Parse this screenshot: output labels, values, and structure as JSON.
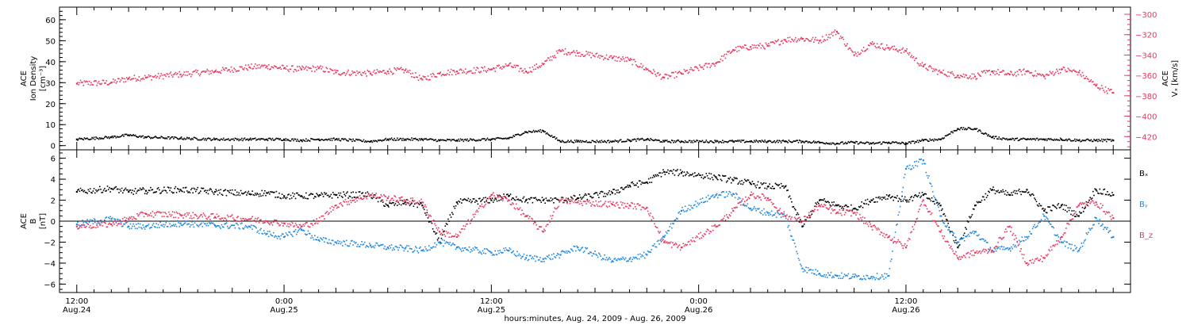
{
  "colors": {
    "black": "#000000",
    "pink": "#e8385f",
    "blue": "#1f88e0"
  },
  "chart_data": [
    {
      "type": "scatter",
      "panel": "density-velocity",
      "ylabel_left": [
        "ACE",
        "Ion Density",
        "[cm⁻³]"
      ],
      "ylabel_right": [
        "ACE",
        "Vₓ [km/s]"
      ],
      "ylim_left": [
        -2,
        66
      ],
      "yticks_left": [
        0,
        10,
        20,
        30,
        40,
        50,
        60
      ],
      "ylim_right": [
        -433,
        -293
      ],
      "yticks_right": [
        -300,
        -320,
        -340,
        -360,
        -380,
        -400,
        -420
      ],
      "xlim_hours": [
        -1,
        61
      ],
      "series": [
        {
          "color": "pink",
          "axis": "right",
          "noise": 3,
          "x": [
            0,
            2,
            3,
            4,
            6,
            8,
            10,
            11,
            12,
            13,
            14,
            15,
            17,
            18,
            19,
            20,
            21,
            22,
            24,
            25,
            26,
            27,
            28,
            29,
            31,
            32,
            33,
            34,
            35,
            37,
            38,
            39,
            40,
            41,
            42,
            43,
            44,
            45,
            46,
            47,
            48,
            49,
            50,
            51,
            52,
            53,
            54,
            55,
            56,
            57,
            58,
            59,
            60
          ],
          "y": [
            -368,
            -367,
            -363,
            -362,
            -359,
            -356,
            -352,
            -351,
            -353,
            -354,
            -353,
            -357,
            -358,
            -356,
            -355,
            -364,
            -358,
            -356,
            -354,
            -350,
            -356,
            -349,
            -336,
            -338,
            -343,
            -345,
            -354,
            -362,
            -358,
            -348,
            -335,
            -332,
            -331,
            -325,
            -324,
            -326,
            -317,
            -340,
            -329,
            -333,
            -336,
            -351,
            -357,
            -360,
            -361,
            -356,
            -359,
            -356,
            -361,
            -354,
            -357,
            -370,
            -377
          ]
        }
      ]
    },
    {
      "type": "scatter",
      "panel": "density-velocity",
      "series": [
        {
          "color": "black",
          "axis": "left",
          "noise": 0.6,
          "x": [
            0,
            2,
            3,
            4,
            6,
            8,
            10,
            11,
            12,
            13,
            14,
            15,
            17,
            18,
            19,
            20,
            21,
            22,
            24,
            25,
            26,
            27,
            28,
            29,
            31,
            32,
            33,
            34,
            35,
            37,
            38,
            39,
            40,
            41,
            42,
            43,
            44,
            45,
            46,
            47,
            48,
            49,
            50,
            51,
            52,
            53,
            54,
            55,
            56,
            57,
            58,
            59,
            60
          ],
          "y": [
            3,
            4,
            5,
            4,
            3.5,
            3,
            3,
            3,
            3,
            2.5,
            3,
            3,
            2,
            3,
            3,
            3,
            2.5,
            2.5,
            3,
            3.5,
            6.5,
            7,
            2,
            2,
            2,
            2.5,
            3,
            2,
            2,
            2,
            2,
            2,
            2,
            2,
            2,
            1.5,
            1,
            1.5,
            1,
            1.5,
            1,
            2.5,
            3,
            8,
            8,
            4,
            3,
            3,
            3,
            3,
            2.5,
            2.5,
            2.5
          ]
        }
      ]
    },
    {
      "type": "scatter",
      "panel": "magnetic-field",
      "ylabel": [
        "ACE",
        "B",
        "[nT]"
      ],
      "ylim": [
        -6.8,
        6.8
      ],
      "yticks": [
        -6,
        -4,
        -2,
        0,
        2,
        4,
        6
      ],
      "xlim_hours": [
        -1,
        61
      ],
      "series": [
        {
          "name": "Bₓ",
          "color": "black",
          "noise": 0.3,
          "x": [
            0,
            2,
            3,
            4,
            6,
            8,
            10,
            11,
            12,
            13,
            14,
            15,
            17,
            18,
            19,
            20,
            21,
            22,
            24,
            25,
            26,
            27,
            28,
            29,
            31,
            32,
            33,
            34,
            35,
            37,
            38,
            39,
            40,
            41,
            42,
            43,
            44,
            45,
            46,
            47,
            48,
            49,
            50,
            51,
            52,
            53,
            54,
            55,
            56,
            57,
            58,
            59,
            60
          ],
          "y": [
            2.8,
            3.1,
            2.8,
            2.9,
            3.0,
            2.8,
            2.6,
            2.7,
            2.4,
            2.4,
            2.4,
            2.5,
            2.5,
            1.5,
            1.8,
            1.5,
            -2.0,
            1.8,
            2.0,
            2.4,
            2.0,
            2.0,
            2.0,
            2.2,
            2.7,
            3.4,
            3.7,
            4.7,
            4.6,
            4.2,
            3.9,
            3.6,
            3.3,
            3.3,
            -0.5,
            2.0,
            1.5,
            1.2,
            2.0,
            2.4,
            2.0,
            2.5,
            1.5,
            -2.5,
            1.5,
            3.0,
            2.5,
            3.0,
            1.0,
            1.5,
            0.5,
            3.0,
            2.5
          ]
        },
        {
          "name": "Bᵧ",
          "color": "blue",
          "noise": 0.3,
          "x": [
            0,
            2,
            3,
            4,
            6,
            8,
            10,
            11,
            12,
            13,
            14,
            15,
            17,
            18,
            19,
            20,
            21,
            22,
            24,
            25,
            26,
            27,
            28,
            29,
            31,
            32,
            33,
            34,
            35,
            37,
            38,
            39,
            40,
            41,
            42,
            43,
            44,
            45,
            46,
            47,
            48,
            49,
            50,
            51,
            52,
            53,
            54,
            55,
            56,
            57,
            58,
            59,
            60
          ],
          "y": [
            -0.3,
            0.2,
            -0.5,
            -0.5,
            -0.2,
            -0.4,
            -0.5,
            -1.2,
            -1.5,
            -0.8,
            -1.8,
            -2.0,
            -2.3,
            -2.5,
            -2.6,
            -2.8,
            -2.0,
            -2.5,
            -3.0,
            -2.8,
            -3.5,
            -3.6,
            -3.2,
            -2.5,
            -3.8,
            -3.6,
            -3.2,
            -1.5,
            1.0,
            2.5,
            2.6,
            1.2,
            0.8,
            0.5,
            -4.5,
            -5.0,
            -5.2,
            -5.3,
            -5.3,
            -5.2,
            5.0,
            5.8,
            0.5,
            -2.0,
            -1.0,
            -2.8,
            -2.6,
            -1.5,
            0.5,
            -2.0,
            -2.8,
            0.3,
            -1.5
          ]
        },
        {
          "name": "B_z",
          "color": "pink",
          "noise": 0.3,
          "x": [
            0,
            2,
            3,
            4,
            6,
            8,
            10,
            11,
            12,
            13,
            14,
            15,
            17,
            18,
            19,
            20,
            21,
            22,
            24,
            25,
            26,
            27,
            28,
            29,
            31,
            32,
            33,
            34,
            35,
            37,
            38,
            39,
            40,
            41,
            42,
            43,
            44,
            45,
            46,
            47,
            48,
            49,
            50,
            51,
            52,
            53,
            54,
            55,
            56,
            57,
            58,
            59,
            60
          ],
          "y": [
            -0.5,
            -0.3,
            0.2,
            0.7,
            0.6,
            0.4,
            0.2,
            0.0,
            -0.2,
            -0.5,
            0.0,
            1.5,
            2.5,
            2.2,
            2.0,
            1.8,
            -1.0,
            -1.5,
            2.5,
            2.0,
            0.5,
            -1.0,
            2.0,
            1.8,
            1.6,
            1.5,
            1.3,
            -2.0,
            -2.5,
            -0.5,
            1.0,
            2.5,
            2.2,
            0.5,
            0.0,
            1.5,
            0.8,
            0.8,
            -0.5,
            -1.5,
            -2.5,
            2.0,
            -1.0,
            -3.5,
            -3.0,
            -2.8,
            -0.5,
            -4.0,
            -3.5,
            -1.5,
            1.5,
            1.8,
            0.3
          ]
        }
      ]
    }
  ],
  "axis": {
    "x_ticks_major": [
      {
        "hour": 0,
        "time": "12:00",
        "date": "Aug.24"
      },
      {
        "hour": 12,
        "time": "0:00",
        "date": "Aug.25"
      },
      {
        "hour": 24,
        "time": "12:00",
        "date": "Aug.25"
      },
      {
        "hour": 36,
        "time": "0:00",
        "date": "Aug.26"
      },
      {
        "hour": 48,
        "time": "12:00",
        "date": "Aug.26"
      }
    ],
    "xlabel": "hours:minutes, Aug. 24, 2009 - Aug. 26, 2009"
  },
  "legend": [
    {
      "label": "Bₓ",
      "color": "black"
    },
    {
      "label": "Bᵧ",
      "color": "blue"
    },
    {
      "label": "B_z",
      "color": "pink"
    }
  ]
}
